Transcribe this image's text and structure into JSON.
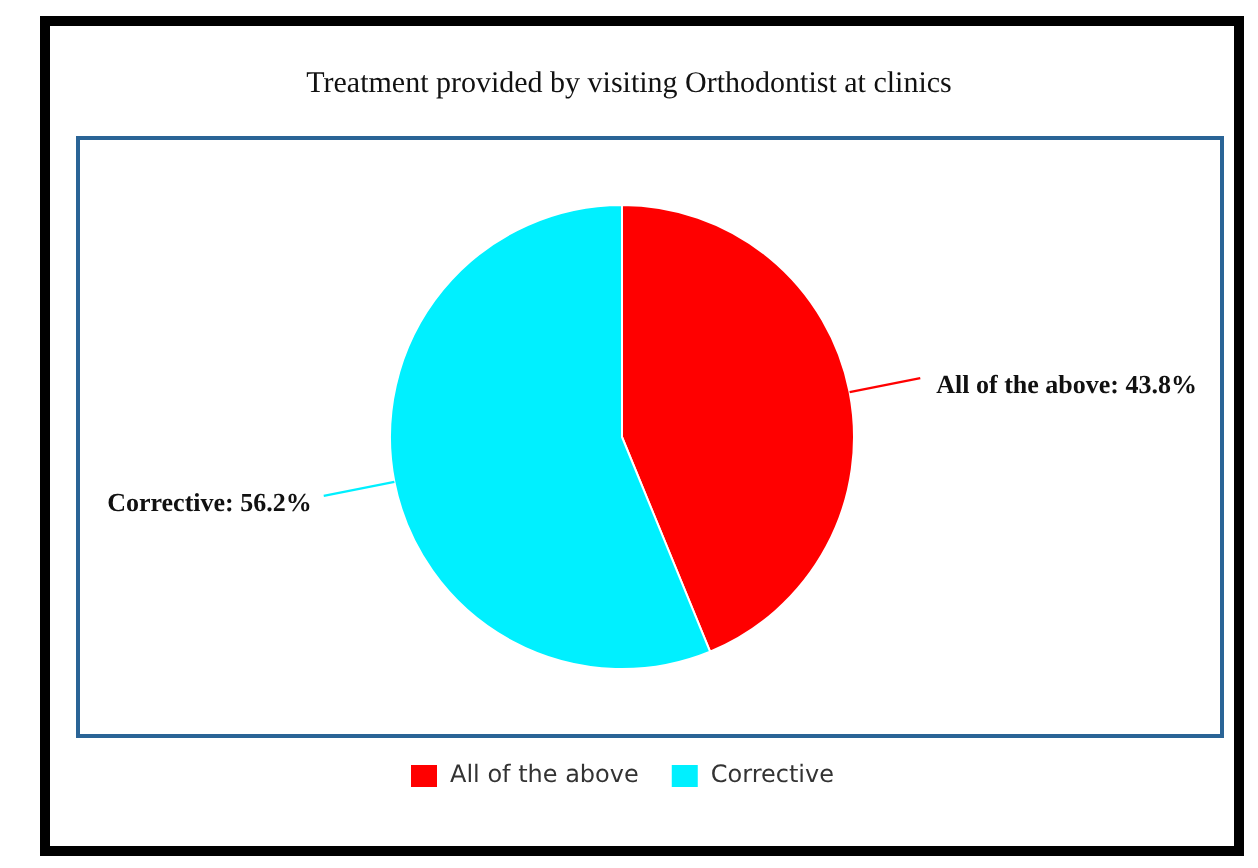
{
  "chart_data": {
    "type": "pie",
    "title": "Treatment provided by visiting Orthodontist at clinics",
    "categories": [
      "All of the above",
      "Corrective"
    ],
    "values": [
      43.8,
      56.2
    ],
    "colors": [
      "#ff0000",
      "#00f0ff"
    ],
    "value_labels": [
      "All of the above: 43.8%",
      "Corrective: 56.2%"
    ],
    "legend": "bottom"
  }
}
